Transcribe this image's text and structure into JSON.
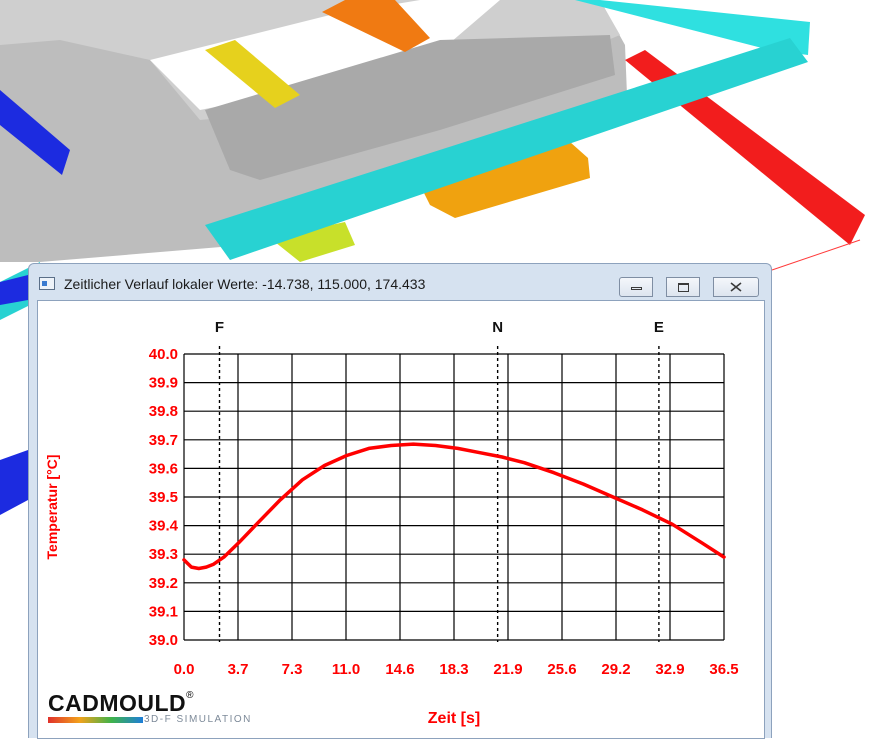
{
  "window": {
    "title": "Zeitlicher Verlauf lokaler Werte: -14.738, 115.000, 174.433"
  },
  "logo": {
    "main": "CADMOULD",
    "mark": "®",
    "sub": "3D-F SIMULATION"
  },
  "chart_data": {
    "type": "line",
    "title": "",
    "xlabel": "Zeit [s]",
    "ylabel": "Temperatur [°C]",
    "xlim": [
      0,
      36.5
    ],
    "ylim": [
      39.0,
      40.0
    ],
    "x_ticks": [
      "0.0",
      "3.7",
      "7.3",
      "11.0",
      "14.6",
      "18.3",
      "21.9",
      "25.6",
      "29.2",
      "32.9",
      "36.5"
    ],
    "y_ticks": [
      "39.0",
      "39.1",
      "39.2",
      "39.3",
      "39.4",
      "39.5",
      "39.6",
      "39.7",
      "39.8",
      "39.9",
      "40.0"
    ],
    "grid": true,
    "markers": [
      {
        "label": "F",
        "x": 2.4
      },
      {
        "label": "N",
        "x": 21.2
      },
      {
        "label": "E",
        "x": 32.1
      }
    ],
    "series": [
      {
        "color": "#ff0000",
        "x": [
          0.0,
          0.5,
          1.0,
          1.5,
          2.0,
          2.7,
          3.7,
          5.0,
          6.5,
          8.0,
          9.5,
          11.0,
          12.5,
          14.0,
          15.5,
          17.0,
          18.5,
          20.0,
          21.5,
          23.0,
          25.0,
          27.0,
          29.0,
          31.0,
          33.0,
          35.0,
          36.5
        ],
        "y": [
          39.28,
          39.255,
          39.25,
          39.255,
          39.265,
          39.29,
          39.34,
          39.41,
          39.49,
          39.56,
          39.61,
          39.645,
          39.67,
          39.68,
          39.685,
          39.68,
          39.67,
          39.655,
          39.64,
          39.62,
          39.585,
          39.545,
          39.5,
          39.455,
          39.405,
          39.34,
          39.29
        ]
      }
    ]
  },
  "colors": {
    "curve": "#ff0000",
    "axis_text": "#ff0000",
    "marker_text": "#111111"
  }
}
